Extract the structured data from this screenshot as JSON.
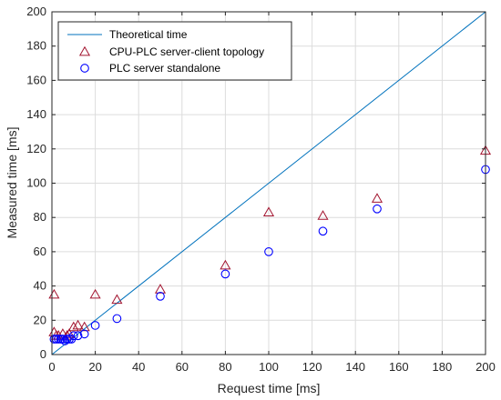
{
  "chart_data": {
    "type": "scatter",
    "title": "",
    "xlabel": "Request time [ms]",
    "ylabel": "Measured time [ms]",
    "xlim": [
      0,
      200
    ],
    "ylim": [
      0,
      200
    ],
    "xticks": [
      0,
      20,
      40,
      60,
      80,
      100,
      120,
      140,
      160,
      180,
      200
    ],
    "yticks": [
      0,
      20,
      40,
      60,
      80,
      100,
      120,
      140,
      160,
      180,
      200
    ],
    "grid": true,
    "legend_position": "top-left",
    "series": [
      {
        "name": "Theoretical time",
        "kind": "line",
        "color": "#0072BD",
        "x": [
          0,
          200
        ],
        "y": [
          0,
          200
        ]
      },
      {
        "name": "CPU-PLC server-client topology",
        "kind": "marker",
        "marker": "triangle",
        "color": "#A2142F",
        "x": [
          1,
          1,
          2,
          3,
          5,
          7,
          8,
          10,
          12,
          15,
          20,
          30,
          50,
          80,
          100,
          125,
          150,
          200
        ],
        "y": [
          35,
          13,
          11,
          11,
          12,
          11,
          12,
          16,
          17,
          16,
          35,
          32,
          38,
          52,
          83,
          81,
          91,
          119
        ]
      },
      {
        "name": "PLC server standalone",
        "kind": "marker",
        "marker": "circle",
        "color": "#0000FF",
        "x": [
          1,
          2,
          3,
          4,
          5,
          6,
          7,
          8,
          9,
          10,
          12,
          15,
          20,
          30,
          50,
          80,
          100,
          125,
          150,
          200
        ],
        "y": [
          9,
          9,
          9,
          9,
          9,
          8,
          9,
          9,
          9,
          11,
          11,
          12,
          17,
          21,
          34,
          47,
          60,
          72,
          85,
          108
        ]
      }
    ]
  }
}
